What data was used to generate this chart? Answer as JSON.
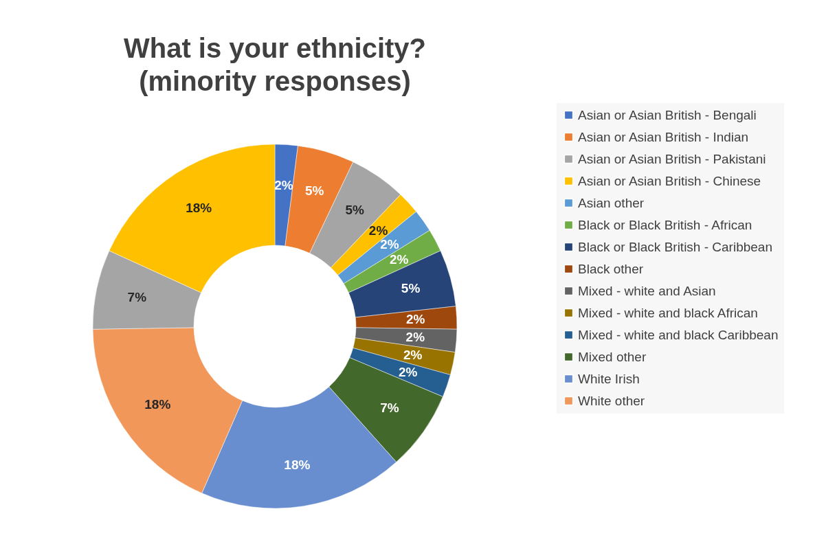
{
  "chart_data": {
    "type": "donut",
    "title": "What is your ethnicity? (minority responses)",
    "categories": [
      "Asian or Asian British - Bengali",
      "Asian or Asian British - Indian",
      "Asian or Asian British - Pakistani",
      "Asian or Asian British - Chinese",
      "Asian other",
      "Black or Black British - African",
      "Black or Black British - Caribbean",
      "Black other",
      "Mixed - white and Asian",
      "Mixed - white and black African",
      "Mixed - white and black Caribbean",
      "Mixed other",
      "White Irish",
      "White other",
      null,
      null
    ],
    "values": [
      2,
      5,
      5,
      2,
      2,
      2,
      5,
      2,
      2,
      2,
      2,
      7,
      18,
      18,
      7,
      18
    ],
    "value_labels": [
      "2%",
      "5%",
      "5%",
      "2%",
      "2%",
      "2%",
      "5%",
      "2%",
      "2%",
      "2%",
      "2%",
      "7%",
      "18%",
      "18%",
      "7%",
      "18%"
    ],
    "colors": [
      "#4472c4",
      "#ed7d31",
      "#a5a5a5",
      "#ffc000",
      "#5b9bd5",
      "#70ad47",
      "#264478",
      "#9e480e",
      "#636363",
      "#997300",
      "#255e91",
      "#43682b",
      "#698ed0",
      "#f1975a",
      "#a5a5a5",
      "#ffc000"
    ],
    "legend": "right"
  }
}
